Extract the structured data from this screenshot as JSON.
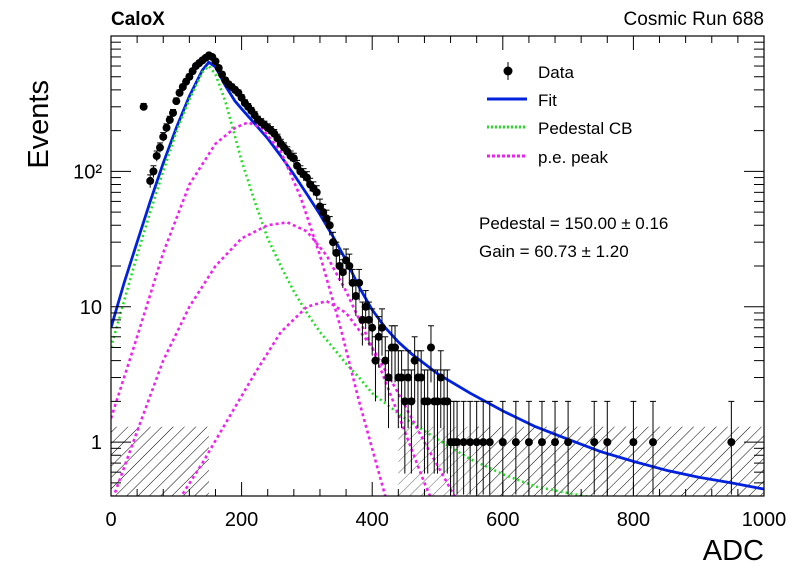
{
  "header": {
    "experiment": "CaloX",
    "run": "Cosmic Run 688"
  },
  "legend": {
    "data": "Data",
    "fit": "Fit",
    "pedestal": "Pedestal CB",
    "pe_peak": "p.e. peak"
  },
  "fit_results": {
    "pedestal": "Pedestal = 150.00 ± 0.16",
    "gain": "Gain = 60.73 ± 1.20"
  },
  "colors": {
    "data": "#000000",
    "fit": "#0022dd",
    "pedestal": "#22dd22",
    "pe_peak": "#ee22ee",
    "hatch": "#000000"
  },
  "chart_data": {
    "type": "scatter",
    "title": "",
    "xlabel": "ADC",
    "ylabel": "Events",
    "xlim": [
      0,
      1000
    ],
    "ylim": [
      0.4,
      1000
    ],
    "yscale": "log",
    "x_ticks": [
      0,
      200,
      400,
      600,
      800,
      1000
    ],
    "y_ticks": [
      {
        "value": 1,
        "label": "1"
      },
      {
        "value": 10,
        "label": "10"
      },
      {
        "value": 100,
        "label": "10²"
      }
    ],
    "legend_position": "top-right",
    "series": [
      {
        "name": "Data",
        "style": "points-with-errors",
        "points": [
          [
            50,
            300
          ],
          [
            60,
            85
          ],
          [
            65,
            100
          ],
          [
            70,
            130
          ],
          [
            75,
            150
          ],
          [
            80,
            180
          ],
          [
            85,
            210
          ],
          [
            90,
            240
          ],
          [
            95,
            270
          ],
          [
            100,
            330
          ],
          [
            105,
            380
          ],
          [
            110,
            420
          ],
          [
            115,
            460
          ],
          [
            120,
            500
          ],
          [
            125,
            550
          ],
          [
            130,
            600
          ],
          [
            135,
            630
          ],
          [
            140,
            660
          ],
          [
            145,
            690
          ],
          [
            150,
            720
          ],
          [
            155,
            700
          ],
          [
            160,
            650
          ],
          [
            165,
            580
          ],
          [
            170,
            520
          ],
          [
            175,
            470
          ],
          [
            180,
            440
          ],
          [
            185,
            420
          ],
          [
            190,
            400
          ],
          [
            195,
            380
          ],
          [
            200,
            350
          ],
          [
            205,
            320
          ],
          [
            210,
            300
          ],
          [
            215,
            280
          ],
          [
            220,
            260
          ],
          [
            225,
            240
          ],
          [
            230,
            230
          ],
          [
            235,
            220
          ],
          [
            240,
            210
          ],
          [
            245,
            200
          ],
          [
            250,
            190
          ],
          [
            255,
            175
          ],
          [
            260,
            160
          ],
          [
            265,
            150
          ],
          [
            270,
            140
          ],
          [
            275,
            130
          ],
          [
            280,
            125
          ],
          [
            285,
            110
          ],
          [
            290,
            100
          ],
          [
            295,
            95
          ],
          [
            300,
            90
          ],
          [
            305,
            80
          ],
          [
            310,
            75
          ],
          [
            315,
            70
          ],
          [
            320,
            55
          ],
          [
            325,
            50
          ],
          [
            330,
            45
          ],
          [
            335,
            40
          ],
          [
            340,
            30
          ],
          [
            345,
            25
          ],
          [
            350,
            20
          ],
          [
            355,
            18
          ],
          [
            360,
            22
          ],
          [
            365,
            20
          ],
          [
            370,
            15
          ],
          [
            375,
            12
          ],
          [
            380,
            15
          ],
          [
            385,
            8
          ],
          [
            390,
            10
          ],
          [
            395,
            8
          ],
          [
            400,
            7
          ],
          [
            405,
            4
          ],
          [
            410,
            6
          ],
          [
            415,
            7
          ],
          [
            420,
            4
          ],
          [
            425,
            3
          ],
          [
            430,
            5
          ],
          [
            435,
            5
          ],
          [
            440,
            3
          ],
          [
            445,
            3
          ],
          [
            450,
            2
          ],
          [
            455,
            3
          ],
          [
            460,
            2
          ],
          [
            465,
            4
          ],
          [
            470,
            3
          ],
          [
            475,
            3
          ],
          [
            480,
            2
          ],
          [
            485,
            2
          ],
          [
            490,
            5
          ],
          [
            495,
            2
          ],
          [
            500,
            2
          ],
          [
            505,
            3
          ],
          [
            510,
            2
          ],
          [
            515,
            2
          ],
          [
            520,
            1
          ],
          [
            525,
            1
          ],
          [
            530,
            1
          ],
          [
            540,
            1
          ],
          [
            550,
            1
          ],
          [
            560,
            1
          ],
          [
            570,
            1
          ],
          [
            580,
            1
          ],
          [
            600,
            1
          ],
          [
            620,
            1
          ],
          [
            640,
            1
          ],
          [
            660,
            1
          ],
          [
            680,
            1
          ],
          [
            700,
            1
          ],
          [
            740,
            1
          ],
          [
            760,
            1
          ],
          [
            800,
            1
          ],
          [
            830,
            1
          ],
          [
            950,
            1
          ]
        ]
      },
      {
        "name": "Fit",
        "style": "line",
        "points": [
          [
            0,
            7
          ],
          [
            20,
            15
          ],
          [
            40,
            30
          ],
          [
            60,
            60
          ],
          [
            80,
            115
          ],
          [
            100,
            210
          ],
          [
            120,
            360
          ],
          [
            140,
            560
          ],
          [
            150,
            640
          ],
          [
            160,
            590
          ],
          [
            175,
            430
          ],
          [
            190,
            330
          ],
          [
            200,
            290
          ],
          [
            220,
            225
          ],
          [
            240,
            175
          ],
          [
            260,
            130
          ],
          [
            280,
            95
          ],
          [
            300,
            68
          ],
          [
            320,
            48
          ],
          [
            340,
            33
          ],
          [
            360,
            22
          ],
          [
            380,
            14
          ],
          [
            400,
            9.5
          ],
          [
            420,
            7
          ],
          [
            440,
            5.5
          ],
          [
            460,
            4.5
          ],
          [
            480,
            3.8
          ],
          [
            500,
            3.2
          ],
          [
            550,
            2.3
          ],
          [
            600,
            1.7
          ],
          [
            650,
            1.3
          ],
          [
            700,
            1.05
          ],
          [
            750,
            0.85
          ],
          [
            800,
            0.72
          ],
          [
            850,
            0.62
          ],
          [
            900,
            0.55
          ],
          [
            950,
            0.5
          ],
          [
            1000,
            0.45
          ]
        ]
      },
      {
        "name": "Pedestal CB",
        "style": "dotted",
        "points": [
          [
            0,
            5
          ],
          [
            20,
            11
          ],
          [
            40,
            24
          ],
          [
            60,
            50
          ],
          [
            80,
            100
          ],
          [
            100,
            195
          ],
          [
            120,
            340
          ],
          [
            140,
            540
          ],
          [
            150,
            600
          ],
          [
            160,
            520
          ],
          [
            175,
            330
          ],
          [
            190,
            180
          ],
          [
            200,
            120
          ],
          [
            220,
            60
          ],
          [
            240,
            32
          ],
          [
            260,
            20
          ],
          [
            280,
            13
          ],
          [
            300,
            9
          ],
          [
            320,
            6.5
          ],
          [
            340,
            5
          ],
          [
            360,
            3.8
          ],
          [
            380,
            3
          ],
          [
            400,
            2.3
          ],
          [
            450,
            1.5
          ],
          [
            500,
            1.05
          ],
          [
            550,
            0.75
          ],
          [
            600,
            0.58
          ],
          [
            650,
            0.47
          ],
          [
            700,
            0.42
          ],
          [
            750,
            0.38
          ]
        ]
      },
      {
        "name": "p.e. peak 1",
        "style": "dotted",
        "points": [
          [
            0,
            1.5
          ],
          [
            40,
            6
          ],
          [
            80,
            25
          ],
          [
            120,
            80
          ],
          [
            160,
            160
          ],
          [
            190,
            210
          ],
          [
            210,
            230
          ],
          [
            230,
            210
          ],
          [
            260,
            140
          ],
          [
            290,
            65
          ],
          [
            320,
            24
          ],
          [
            350,
            7.5
          ],
          [
            380,
            2
          ],
          [
            410,
            0.6
          ],
          [
            420,
            0.4
          ]
        ]
      },
      {
        "name": "p.e. peak 2",
        "style": "dotted",
        "points": [
          [
            0,
            0.35
          ],
          [
            40,
            1.2
          ],
          [
            80,
            4
          ],
          [
            120,
            10
          ],
          [
            160,
            20
          ],
          [
            200,
            32
          ],
          [
            240,
            40
          ],
          [
            270,
            42
          ],
          [
            300,
            36
          ],
          [
            330,
            24
          ],
          [
            360,
            13
          ],
          [
            400,
            5
          ],
          [
            440,
            1.6
          ],
          [
            480,
            0.5
          ],
          [
            500,
            0.3
          ]
        ]
      },
      {
        "name": "p.e. peak 3",
        "style": "dotted",
        "points": [
          [
            100,
            0.35
          ],
          [
            140,
            0.7
          ],
          [
            180,
            1.5
          ],
          [
            220,
            3.2
          ],
          [
            260,
            6.5
          ],
          [
            300,
            10
          ],
          [
            330,
            11
          ],
          [
            360,
            9
          ],
          [
            400,
            5
          ],
          [
            440,
            2.3
          ],
          [
            480,
            1
          ],
          [
            520,
            0.45
          ],
          [
            540,
            0.3
          ]
        ]
      }
    ]
  }
}
